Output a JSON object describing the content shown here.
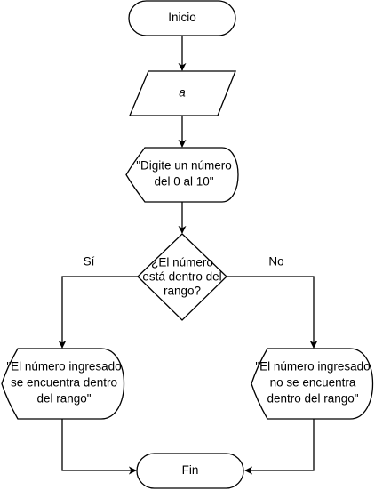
{
  "diagram": {
    "type": "flowchart",
    "nodes": {
      "start": {
        "shape": "terminator",
        "label": "Inicio"
      },
      "input": {
        "shape": "parallelogram",
        "label": "a"
      },
      "prompt": {
        "shape": "display",
        "lines": [
          "\"Digite un número",
          "del 0 al 10\""
        ]
      },
      "decision": {
        "shape": "diamond",
        "lines": [
          "¿El número",
          "está dentro del",
          "rango?"
        ]
      },
      "yes_out": {
        "shape": "display",
        "lines": [
          "\"El número ingresado",
          "se encuentra dentro",
          "del rango\""
        ]
      },
      "no_out": {
        "shape": "display",
        "lines": [
          "\"El número ingresado",
          "no se encuentra",
          "dentro del rango\""
        ]
      },
      "end": {
        "shape": "terminator",
        "label": "Fin"
      }
    },
    "edges": [
      {
        "from": "start",
        "to": "input",
        "label": ""
      },
      {
        "from": "input",
        "to": "prompt",
        "label": ""
      },
      {
        "from": "prompt",
        "to": "decision",
        "label": ""
      },
      {
        "from": "decision",
        "to": "yes_out",
        "label": "Sí"
      },
      {
        "from": "decision",
        "to": "no_out",
        "label": "No"
      },
      {
        "from": "yes_out",
        "to": "end",
        "label": ""
      },
      {
        "from": "no_out",
        "to": "end",
        "label": ""
      }
    ]
  }
}
